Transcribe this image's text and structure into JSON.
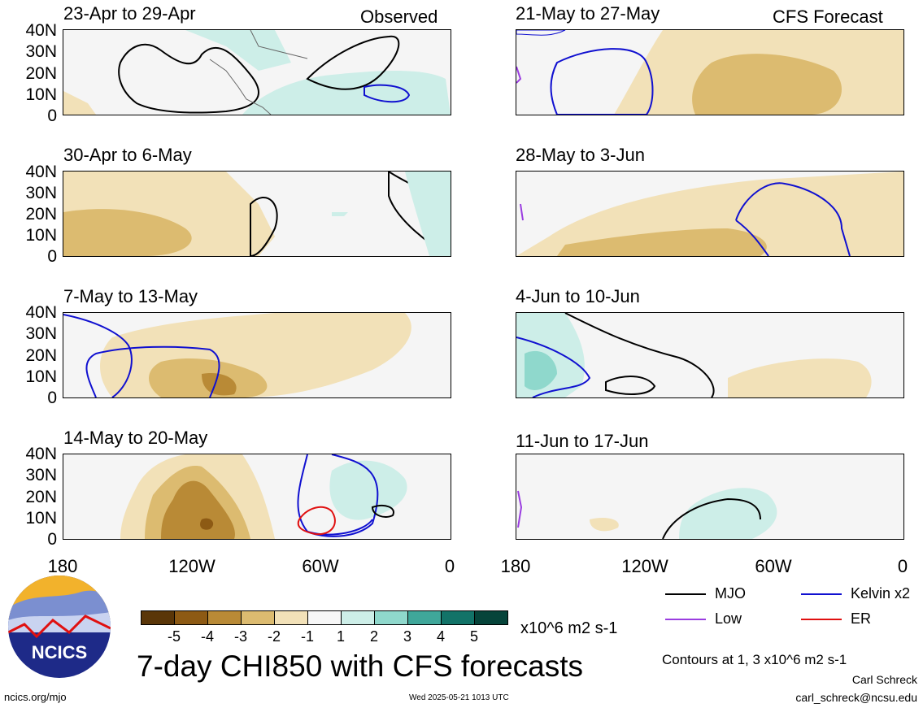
{
  "tags": {
    "observed": "Observed",
    "forecast": "CFS Forecast"
  },
  "panels": [
    {
      "title": "23-Apr to 29-Apr"
    },
    {
      "title": "30-Apr to 6-May"
    },
    {
      "title": "7-May to 13-May"
    },
    {
      "title": "14-May to 20-May"
    },
    {
      "title": "21-May to 27-May"
    },
    {
      "title": "28-May to 3-Jun"
    },
    {
      "title": "4-Jun to 10-Jun"
    },
    {
      "title": "11-Jun to 17-Jun"
    }
  ],
  "axes": {
    "y_ticks": [
      "40N",
      "30N",
      "20N",
      "10N",
      "0"
    ],
    "x_ticks": [
      "180",
      "120W",
      "60W",
      "0"
    ]
  },
  "legend": {
    "items": [
      {
        "label": "MJO",
        "color": "#000000"
      },
      {
        "label": "Kelvin x2",
        "color": "#1010d0"
      },
      {
        "label": "Low",
        "color": "#9a3de0"
      },
      {
        "label": "ER",
        "color": "#e01010"
      }
    ],
    "contour_note": "Contours at 1, 3 x10^6 m2 s-1"
  },
  "colorbar": {
    "colors": [
      "#5a3608",
      "#8d5a14",
      "#b98a36",
      "#dcbb70",
      "#f2e1b8",
      "#f7f7f7",
      "#cdeee8",
      "#8fd8cc",
      "#3fa79a",
      "#127368",
      "#06443a"
    ],
    "labels": [
      "-5",
      "-4",
      "-3",
      "-2",
      "-1",
      "1",
      "2",
      "3",
      "4",
      "5"
    ],
    "units": "x10^6 m2 s-1"
  },
  "main_title": "7-day CHI850 with CFS forecasts",
  "footer": {
    "logo_text": "NCICS",
    "url": "ncics.org/mjo",
    "timestamp": "Wed 2025-05-21 1013 UTC",
    "author": "Carl Schreck",
    "email": "carl_schreck@ncsu.edu"
  }
}
